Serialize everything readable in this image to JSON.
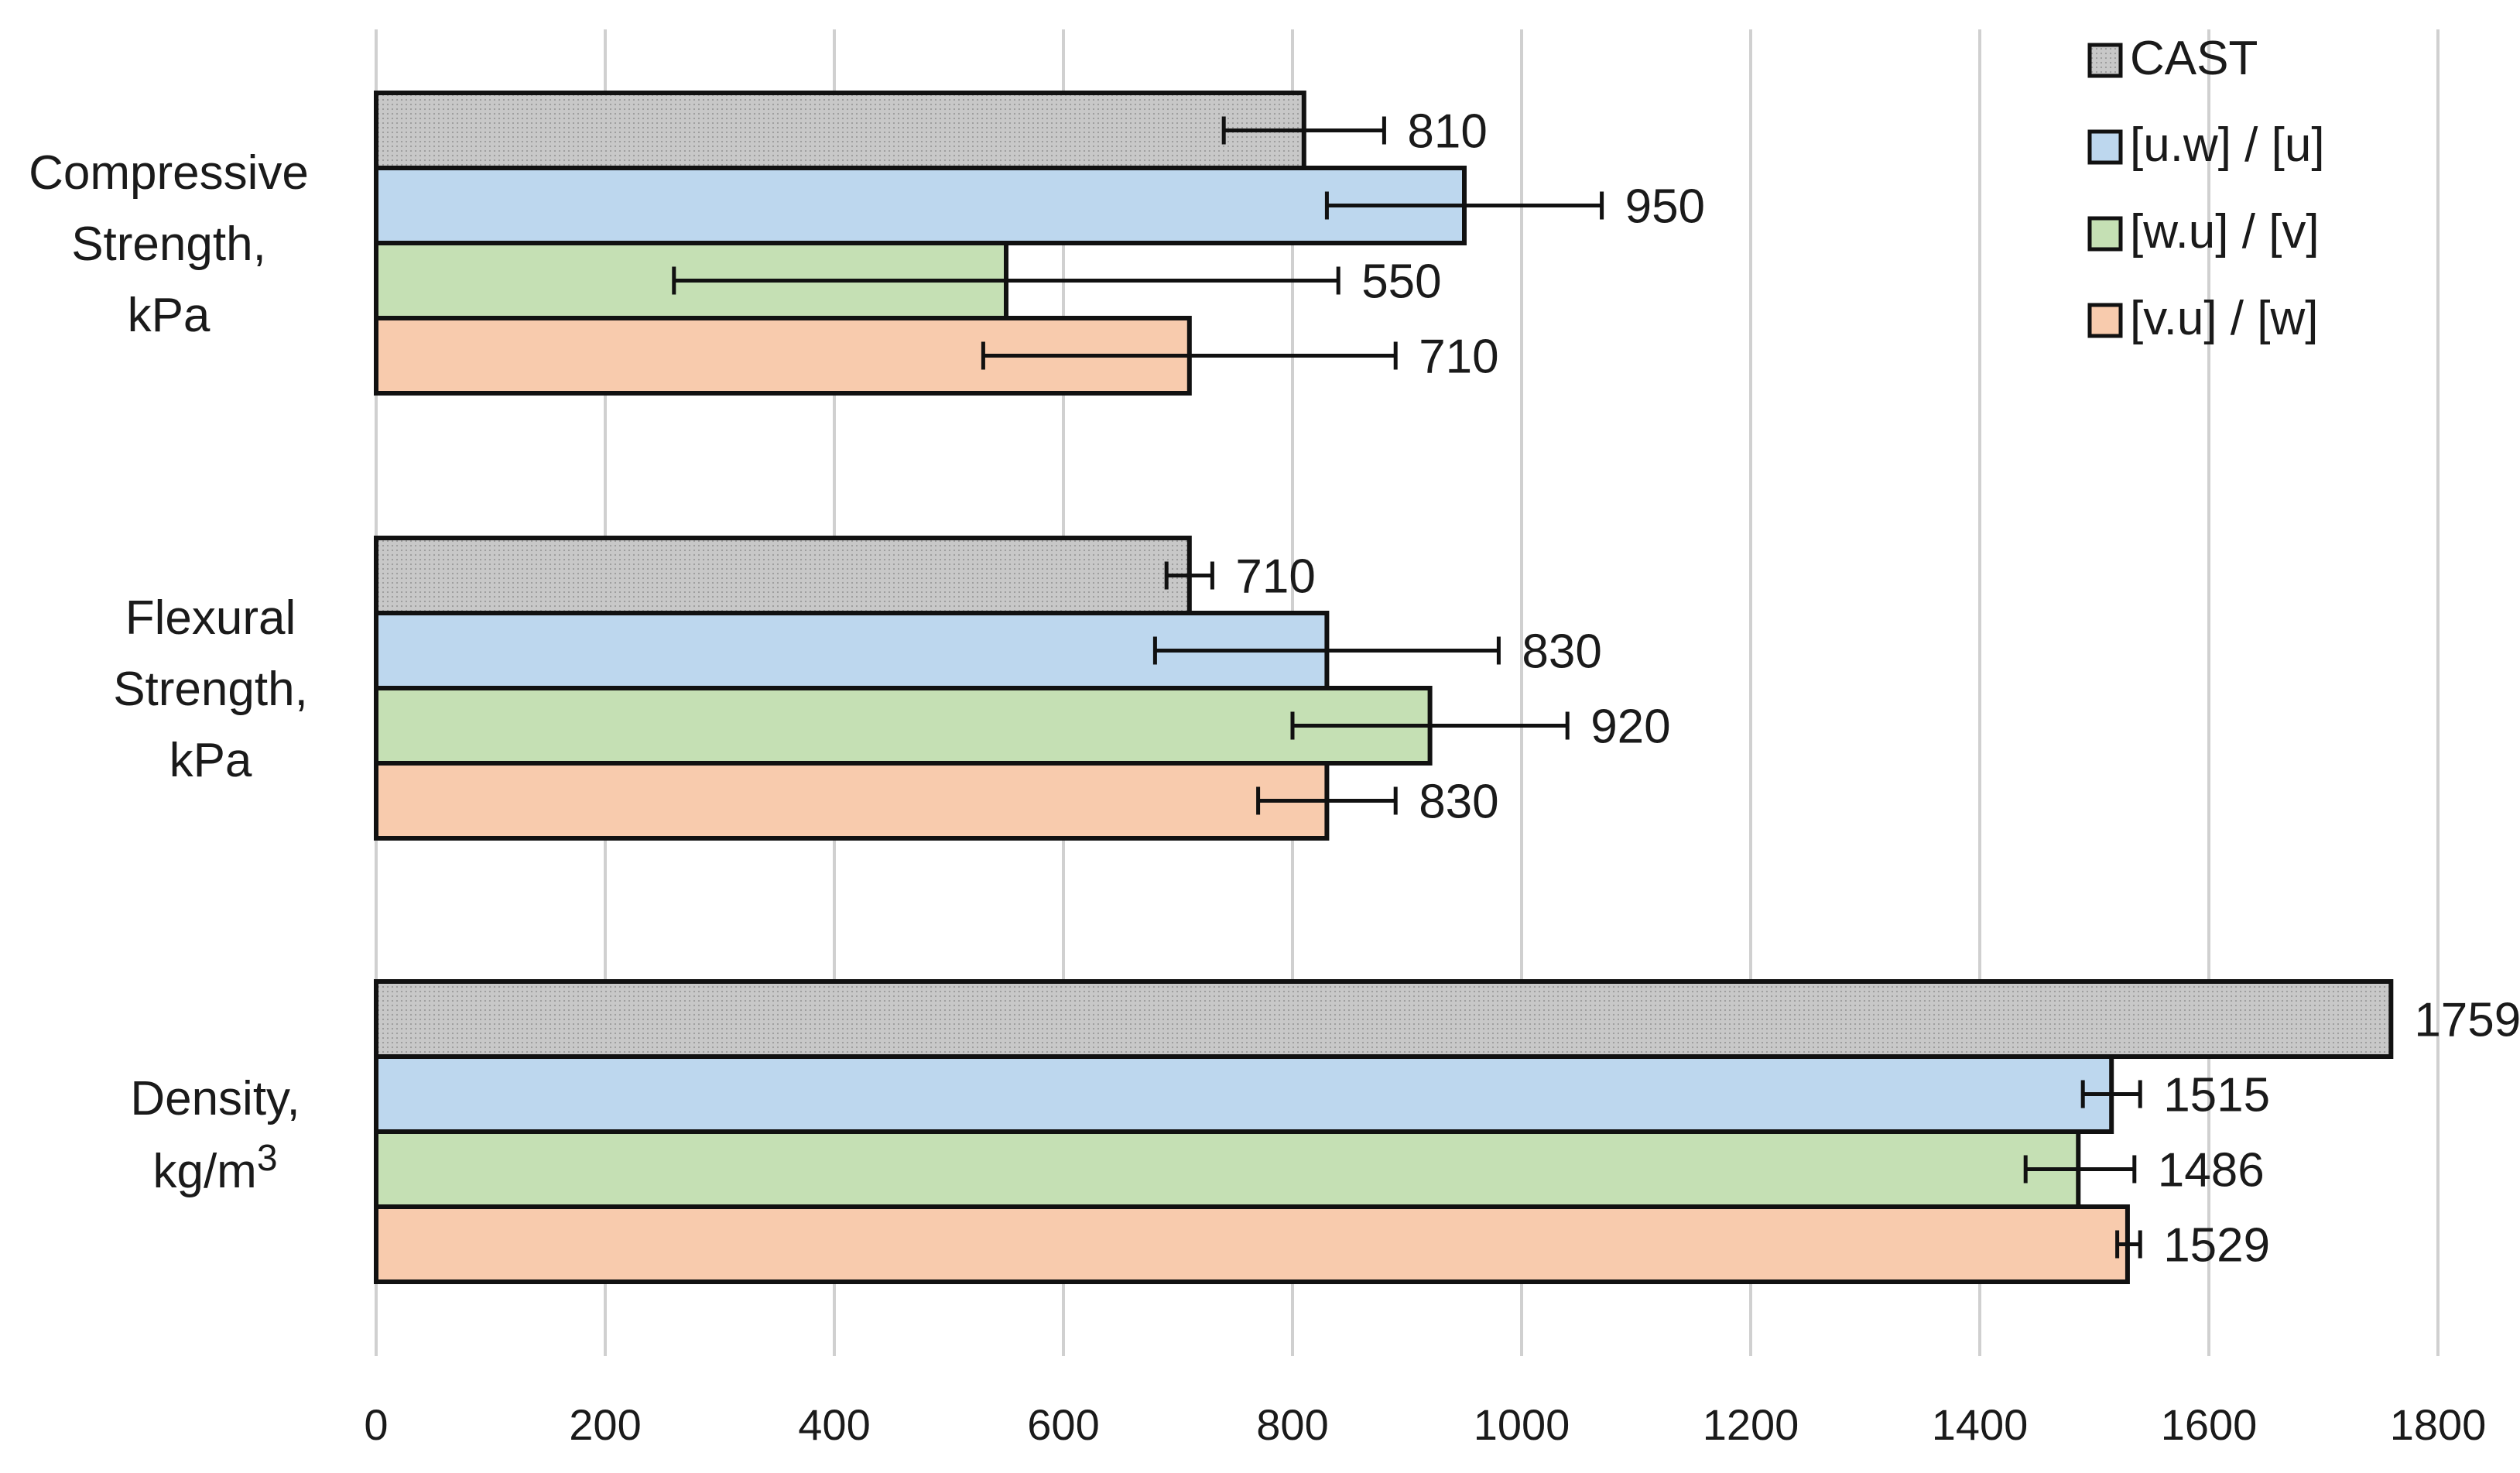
{
  "chart_data": {
    "type": "bar",
    "orientation": "horizontal",
    "title": "",
    "xlabel": "",
    "ylabel": "",
    "xlim": [
      0,
      1800
    ],
    "xticks": [
      0,
      200,
      400,
      600,
      800,
      1000,
      1200,
      1400,
      1600,
      1800
    ],
    "grid": "vertical",
    "legend_position": "top-right",
    "categories": [
      {
        "lines": [
          "Compressive",
          "Strength,",
          "kPa"
        ]
      },
      {
        "lines": [
          "Flexural",
          "Strength,",
          "kPa"
        ]
      },
      {
        "lines": [
          "Density,",
          "kg/m",
          "3"
        ]
      }
    ],
    "series": [
      {
        "name": "CAST",
        "color": "#c8c8c8",
        "pattern": "dots",
        "values": [
          810,
          710,
          1759
        ],
        "labels": [
          "810",
          "710",
          "1759"
        ],
        "error_low": [
          740,
          690,
          1759
        ],
        "error_high": [
          880,
          730,
          1759
        ]
      },
      {
        "name": "[u.w] / [u]",
        "color": "#bdd7ee",
        "pattern": "none",
        "values": [
          950,
          830,
          1515
        ],
        "labels": [
          "950",
          "830",
          "1515"
        ],
        "error_low": [
          830,
          680,
          1490
        ],
        "error_high": [
          1070,
          980,
          1540
        ]
      },
      {
        "name": "[w.u] / [v]",
        "color": "#c5e0b4",
        "pattern": "none",
        "values": [
          550,
          920,
          1486
        ],
        "labels": [
          "550",
          "920",
          "1486"
        ],
        "error_low": [
          260,
          800,
          1440
        ],
        "error_high": [
          840,
          1040,
          1535
        ]
      },
      {
        "name": "[v.u] / [w]",
        "color": "#f8cbad",
        "pattern": "none",
        "values": [
          710,
          830,
          1529
        ],
        "labels": [
          "710",
          "830",
          "1529"
        ],
        "error_low": [
          530,
          770,
          1520
        ],
        "error_high": [
          890,
          890,
          1540
        ]
      }
    ]
  }
}
